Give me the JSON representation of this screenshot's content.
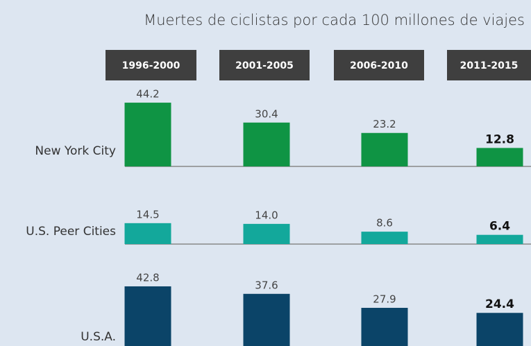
{
  "chart_data": {
    "type": "bar",
    "title": "Muertes de ciclistas por cada 100 millones de viajes",
    "categories": [
      "1996-2000",
      "2001-2005",
      "2006-2010",
      "2011-2015"
    ],
    "series": [
      {
        "name": "New York City",
        "color": "#0f9444",
        "values": [
          44.2,
          30.4,
          23.2,
          12.8
        ],
        "value_labels": [
          "44.2",
          "30.4",
          "23.2",
          "12.8"
        ]
      },
      {
        "name": "U.S. Peer Cities",
        "color": "#13a89b",
        "values": [
          14.5,
          14.0,
          8.6,
          6.4
        ],
        "value_labels": [
          "14.5",
          "14.0",
          "8.6",
          "6.4"
        ]
      },
      {
        "name": "U.S.A.",
        "color": "#0b4468",
        "values": [
          42.8,
          37.6,
          27.9,
          24.4
        ],
        "value_labels": [
          "42.8",
          "37.6",
          "27.9",
          "24.4"
        ]
      }
    ]
  }
}
